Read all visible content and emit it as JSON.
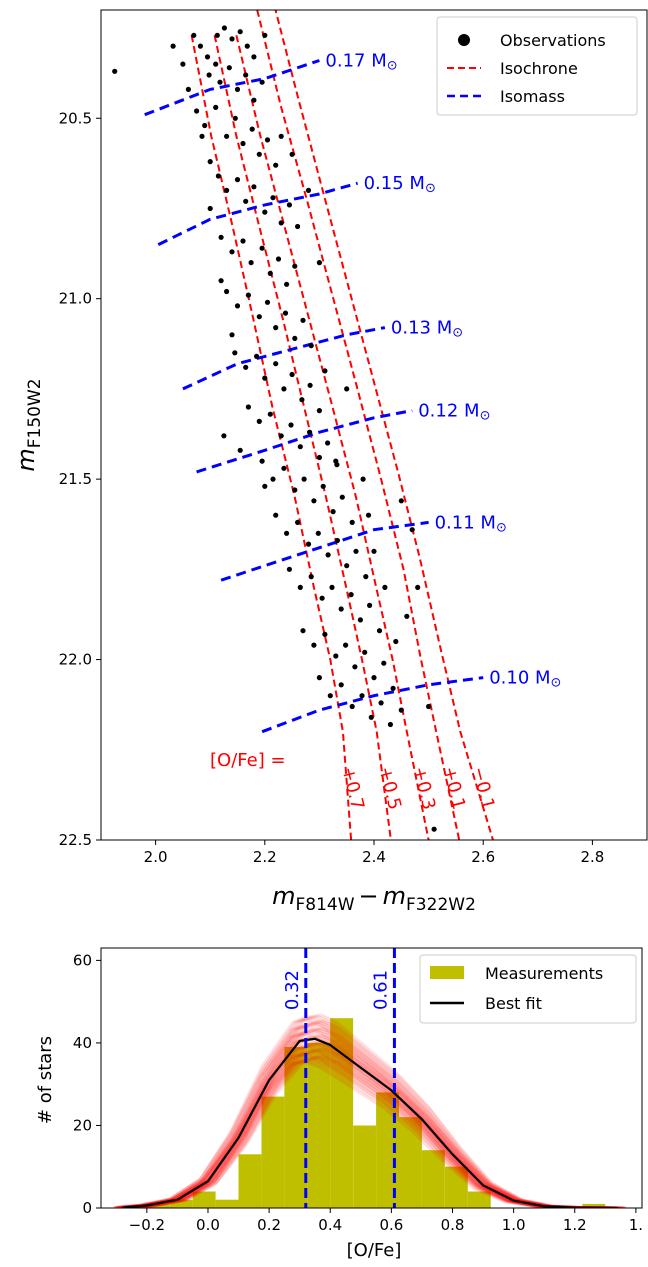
{
  "chart_data": [
    {
      "type": "scatter",
      "xlabel_main": "m",
      "xlabel_sub1": "F814W",
      "xlabel_minus": "−",
      "xlabel_m2": "m",
      "xlabel_sub2": "F322W2",
      "ylabel_main": "m",
      "ylabel_sub": "F150W2",
      "xlim": [
        1.9,
        2.9
      ],
      "ylim": [
        20.2,
        22.5
      ],
      "y_inverted": true,
      "xticks": [
        "2.0",
        "2.2",
        "2.4",
        "2.6",
        "2.8"
      ],
      "yticks": [
        "20.5",
        "21.0",
        "21.5",
        "22.0",
        "22.5"
      ],
      "legend": {
        "position": "top-right",
        "entries": [
          "Observations",
          "Isochrone",
          "Isomass"
        ]
      },
      "ofe_prefix": "[O/Fe] =",
      "isochrones": [
        {
          "label": "+0.7",
          "points": [
            [
              2.066,
              20.27
            ],
            [
              2.102,
              20.55
            ],
            [
              2.141,
              20.8
            ],
            [
              2.178,
              21.05
            ],
            [
              2.214,
              21.3
            ],
            [
              2.255,
              21.55
            ],
            [
              2.29,
              21.8
            ],
            [
              2.32,
              22.0
            ],
            [
              2.343,
              22.2
            ],
            [
              2.358,
              22.5
            ]
          ]
        },
        {
          "label": "+0.5",
          "points": [
            [
              2.108,
              20.27
            ],
            [
              2.148,
              20.55
            ],
            [
              2.19,
              20.8
            ],
            [
              2.232,
              21.05
            ],
            [
              2.272,
              21.3
            ],
            [
              2.312,
              21.55
            ],
            [
              2.349,
              21.8
            ],
            [
              2.378,
              22.0
            ],
            [
              2.405,
              22.2
            ],
            [
              2.431,
              22.5
            ]
          ]
        },
        {
          "label": "+0.3",
          "points": [
            [
              2.148,
              20.27
            ],
            [
              2.192,
              20.55
            ],
            [
              2.236,
              20.8
            ],
            [
              2.28,
              21.05
            ],
            [
              2.324,
              21.3
            ],
            [
              2.367,
              21.55
            ],
            [
              2.404,
              21.8
            ],
            [
              2.434,
              22.0
            ],
            [
              2.46,
              22.2
            ],
            [
              2.5,
              22.5
            ]
          ]
        },
        {
          "label": "+0.1",
          "points": [
            [
              2.186,
              20.2
            ],
            [
              2.23,
              20.47
            ],
            [
              2.276,
              20.72
            ],
            [
              2.322,
              20.98
            ],
            [
              2.368,
              21.24
            ],
            [
              2.413,
              21.5
            ],
            [
              2.454,
              21.75
            ],
            [
              2.486,
              22.0
            ],
            [
              2.514,
              22.2
            ],
            [
              2.556,
              22.5
            ]
          ]
        },
        {
          "label": "−0.1",
          "points": [
            [
              2.218,
              20.19
            ],
            [
              2.262,
              20.45
            ],
            [
              2.306,
              20.7
            ],
            [
              2.352,
              20.96
            ],
            [
              2.398,
              21.22
            ],
            [
              2.444,
              21.48
            ],
            [
              2.484,
              21.72
            ],
            [
              2.522,
              21.97
            ],
            [
              2.558,
              22.2
            ],
            [
              2.618,
              22.5
            ]
          ]
        }
      ],
      "isomass": [
        {
          "label": "0.17 M",
          "points": [
            [
              1.98,
              20.49
            ],
            [
              2.1,
              20.42
            ],
            [
              2.2,
              20.39
            ],
            [
              2.3,
              20.34
            ]
          ]
        },
        {
          "label": "0.15 M",
          "points": [
            [
              2.005,
              20.85
            ],
            [
              2.1,
              20.78
            ],
            [
              2.2,
              20.74
            ],
            [
              2.3,
              20.71
            ],
            [
              2.37,
              20.68
            ]
          ]
        },
        {
          "label": "0.13 M",
          "points": [
            [
              2.05,
              21.25
            ],
            [
              2.15,
              21.18
            ],
            [
              2.25,
              21.14
            ],
            [
              2.35,
              21.1
            ],
            [
              2.42,
              21.08
            ]
          ]
        },
        {
          "label": "0.12 M",
          "points": [
            [
              2.075,
              21.48
            ],
            [
              2.2,
              21.42
            ],
            [
              2.3,
              21.37
            ],
            [
              2.4,
              21.33
            ],
            [
              2.47,
              21.31
            ]
          ]
        },
        {
          "label": "0.11 M",
          "points": [
            [
              2.12,
              21.78
            ],
            [
              2.2,
              21.74
            ],
            [
              2.3,
              21.69
            ],
            [
              2.4,
              21.64
            ],
            [
              2.5,
              21.62
            ]
          ]
        },
        {
          "label": "0.10 M",
          "points": [
            [
              2.195,
              22.2
            ],
            [
              2.3,
              22.14
            ],
            [
              2.4,
              22.1
            ],
            [
              2.5,
              22.07
            ],
            [
              2.6,
              22.05
            ]
          ]
        }
      ],
      "observations": [
        [
          1.925,
          20.37
        ],
        [
          2.07,
          20.27
        ],
        [
          2.082,
          20.3
        ],
        [
          2.095,
          20.33
        ],
        [
          2.113,
          20.27
        ],
        [
          2.126,
          20.25
        ],
        [
          2.14,
          20.28
        ],
        [
          2.155,
          20.26
        ],
        [
          2.168,
          20.3
        ],
        [
          2.18,
          20.33
        ],
        [
          2.098,
          20.38
        ],
        [
          2.118,
          20.4
        ],
        [
          2.135,
          20.36
        ],
        [
          2.15,
          20.42
        ],
        [
          2.165,
          20.38
        ],
        [
          2.18,
          20.45
        ],
        [
          2.195,
          20.4
        ],
        [
          2.075,
          20.48
        ],
        [
          2.09,
          20.52
        ],
        [
          2.11,
          20.47
        ],
        [
          2.13,
          20.55
        ],
        [
          2.146,
          20.5
        ],
        [
          2.16,
          20.57
        ],
        [
          2.177,
          20.53
        ],
        [
          2.19,
          20.6
        ],
        [
          2.205,
          20.56
        ],
        [
          2.22,
          20.63
        ],
        [
          2.1,
          20.62
        ],
        [
          2.115,
          20.66
        ],
        [
          2.13,
          20.7
        ],
        [
          2.15,
          20.67
        ],
        [
          2.165,
          20.73
        ],
        [
          2.18,
          20.69
        ],
        [
          2.2,
          20.76
        ],
        [
          2.215,
          20.72
        ],
        [
          2.23,
          20.79
        ],
        [
          2.245,
          20.74
        ],
        [
          2.12,
          20.83
        ],
        [
          2.14,
          20.87
        ],
        [
          2.16,
          20.84
        ],
        [
          2.175,
          20.9
        ],
        [
          2.195,
          20.86
        ],
        [
          2.21,
          20.93
        ],
        [
          2.225,
          20.89
        ],
        [
          2.24,
          20.96
        ],
        [
          2.255,
          20.91
        ],
        [
          2.13,
          20.98
        ],
        [
          2.15,
          21.02
        ],
        [
          2.17,
          20.99
        ],
        [
          2.19,
          21.05
        ],
        [
          2.205,
          21.01
        ],
        [
          2.22,
          21.08
        ],
        [
          2.238,
          21.04
        ],
        [
          2.255,
          21.11
        ],
        [
          2.27,
          21.06
        ],
        [
          2.285,
          21.13
        ],
        [
          2.145,
          21.15
        ],
        [
          2.165,
          21.19
        ],
        [
          2.185,
          21.16
        ],
        [
          2.2,
          21.22
        ],
        [
          2.22,
          21.18
        ],
        [
          2.235,
          21.25
        ],
        [
          2.25,
          21.21
        ],
        [
          2.268,
          21.28
        ],
        [
          2.283,
          21.24
        ],
        [
          2.3,
          21.31
        ],
        [
          2.17,
          21.3
        ],
        [
          2.19,
          21.34
        ],
        [
          2.21,
          21.32
        ],
        [
          2.23,
          21.38
        ],
        [
          2.248,
          21.35
        ],
        [
          2.265,
          21.41
        ],
        [
          2.282,
          21.37
        ],
        [
          2.3,
          21.44
        ],
        [
          2.315,
          21.4
        ],
        [
          2.332,
          21.46
        ],
        [
          2.195,
          21.45
        ],
        [
          2.215,
          21.5
        ],
        [
          2.235,
          21.47
        ],
        [
          2.255,
          21.53
        ],
        [
          2.272,
          21.5
        ],
        [
          2.29,
          21.56
        ],
        [
          2.307,
          21.52
        ],
        [
          2.325,
          21.59
        ],
        [
          2.342,
          21.55
        ],
        [
          2.36,
          21.62
        ],
        [
          2.22,
          21.6
        ],
        [
          2.24,
          21.65
        ],
        [
          2.26,
          21.62
        ],
        [
          2.28,
          21.68
        ],
        [
          2.298,
          21.65
        ],
        [
          2.316,
          21.71
        ],
        [
          2.333,
          21.67
        ],
        [
          2.35,
          21.74
        ],
        [
          2.367,
          21.7
        ],
        [
          2.385,
          21.77
        ],
        [
          2.245,
          21.75
        ],
        [
          2.265,
          21.8
        ],
        [
          2.285,
          21.77
        ],
        [
          2.305,
          21.83
        ],
        [
          2.323,
          21.8
        ],
        [
          2.34,
          21.86
        ],
        [
          2.358,
          21.82
        ],
        [
          2.375,
          21.89
        ],
        [
          2.392,
          21.85
        ],
        [
          2.41,
          21.92
        ],
        [
          2.27,
          21.92
        ],
        [
          2.29,
          21.96
        ],
        [
          2.31,
          21.93
        ],
        [
          2.33,
          21.99
        ],
        [
          2.348,
          21.96
        ],
        [
          2.365,
          22.02
        ],
        [
          2.383,
          21.98
        ],
        [
          2.4,
          22.05
        ],
        [
          2.418,
          22.01
        ],
        [
          2.435,
          22.08
        ],
        [
          2.3,
          22.05
        ],
        [
          2.32,
          22.1
        ],
        [
          2.34,
          22.07
        ],
        [
          2.36,
          22.13
        ],
        [
          2.378,
          22.1
        ],
        [
          2.395,
          22.16
        ],
        [
          2.413,
          22.12
        ],
        [
          2.43,
          22.18
        ],
        [
          2.45,
          22.14
        ],
        [
          2.5,
          22.13
        ],
        [
          2.51,
          22.47
        ],
        [
          2.125,
          21.38
        ],
        [
          2.155,
          21.42
        ],
        [
          2.2,
          21.52
        ],
        [
          2.45,
          21.56
        ],
        [
          2.47,
          21.64
        ],
        [
          2.48,
          21.8
        ],
        [
          2.4,
          21.7
        ],
        [
          2.38,
          21.5
        ],
        [
          2.35,
          21.25
        ],
        [
          2.28,
          20.7
        ],
        [
          2.3,
          20.9
        ],
        [
          2.11,
          20.35
        ],
        [
          2.2,
          20.27
        ],
        [
          2.23,
          20.55
        ],
        [
          2.25,
          20.6
        ],
        [
          2.26,
          20.8
        ],
        [
          2.14,
          21.1
        ],
        [
          2.12,
          20.95
        ],
        [
          2.1,
          20.75
        ],
        [
          2.085,
          20.55
        ],
        [
          2.06,
          20.42
        ],
        [
          2.05,
          20.35
        ],
        [
          2.032,
          20.3
        ],
        [
          2.44,
          21.95
        ],
        [
          2.46,
          21.88
        ],
        [
          2.42,
          21.8
        ],
        [
          2.39,
          21.6
        ],
        [
          2.33,
          21.45
        ],
        [
          2.31,
          21.2
        ]
      ]
    },
    {
      "type": "bar",
      "xlabel": "[O/Fe]",
      "ylabel": "# of stars",
      "xlim": [
        -0.35,
        1.42
      ],
      "ylim": [
        0,
        63
      ],
      "xticks": [
        "−0.2",
        "0.0",
        "0.2",
        "0.4",
        "0.6",
        "0.8",
        "1.0",
        "1.2",
        "1."
      ],
      "yticks": [
        "0",
        "20",
        "40",
        "60"
      ],
      "legend": {
        "position": "top-right",
        "entries": [
          "Measurements",
          "Best fit"
        ]
      },
      "bin_width": 0.075,
      "bin_lefts": [
        -0.2,
        -0.125,
        -0.05,
        0.025,
        0.1,
        0.175,
        0.25,
        0.325,
        0.4,
        0.475,
        0.55,
        0.625,
        0.7,
        0.775,
        0.85,
        0.925,
        1.0,
        1.075,
        1.15,
        1.225
      ],
      "values": [
        1,
        2,
        4,
        2,
        13,
        27,
        39,
        40,
        46,
        20,
        28,
        22,
        14,
        10,
        4,
        0,
        0,
        0,
        0,
        1
      ],
      "vlines": [
        {
          "x": 0.32,
          "label": "0.32"
        },
        {
          "x": 0.61,
          "label": "0.61"
        }
      ],
      "fit": {
        "x": [
          -0.28,
          -0.2,
          -0.1,
          0.0,
          0.1,
          0.2,
          0.3,
          0.35,
          0.4,
          0.5,
          0.6,
          0.7,
          0.8,
          0.9,
          1.0,
          1.1,
          1.2,
          1.34
        ],
        "y": [
          0.1,
          0.6,
          2.0,
          6.5,
          17.0,
          31.0,
          40.5,
          41.0,
          39.5,
          34.0,
          28.5,
          21.5,
          13.0,
          5.5,
          1.8,
          0.4,
          0.1,
          0.0
        ]
      }
    }
  ],
  "colors": {
    "isochrone": "#ff0000",
    "isomass": "#0000ff",
    "observations": "#000000",
    "histogram": "#bfbf00",
    "fit": "#000000",
    "fit_band": "#ff0000",
    "vline": "#0000ff"
  }
}
